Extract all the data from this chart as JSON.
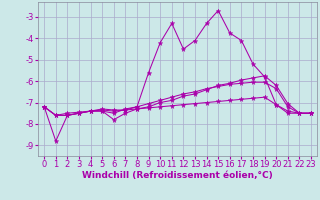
{
  "background_color": "#cce8e8",
  "grid_color": "#aaaacc",
  "line_color": "#aa00aa",
  "xlabel": "Windchill (Refroidissement éolien,°C)",
  "xlabel_fontsize": 6.5,
  "tick_fontsize": 6,
  "xlim": [
    -0.5,
    23.5
  ],
  "ylim": [
    -9.5,
    -2.3
  ],
  "yticks": [
    -9,
    -8,
    -7,
    -6,
    -5,
    -4,
    -3
  ],
  "xticks": [
    0,
    1,
    2,
    3,
    4,
    5,
    6,
    7,
    8,
    9,
    10,
    11,
    12,
    13,
    14,
    15,
    16,
    17,
    18,
    19,
    20,
    21,
    22,
    23
  ],
  "curves": [
    {
      "x": [
        0,
        1,
        2,
        3,
        4,
        5,
        6,
        7,
        8,
        9,
        10,
        11,
        12,
        13,
        14,
        15,
        16,
        17,
        18,
        19,
        20,
        21,
        22,
        23
      ],
      "y": [
        -7.2,
        -8.8,
        -7.6,
        -7.5,
        -7.4,
        -7.3,
        -7.35,
        -7.35,
        -7.2,
        -5.6,
        -4.2,
        -3.3,
        -4.5,
        -4.1,
        -3.3,
        -2.7,
        -3.75,
        -4.1,
        -5.2,
        -5.8,
        -7.1,
        -7.5,
        -7.5,
        -7.5
      ]
    },
    {
      "x": [
        0,
        1,
        2,
        3,
        4,
        5,
        6,
        7,
        8,
        9,
        10,
        11,
        12,
        13,
        14,
        15,
        16,
        17,
        18,
        19,
        20,
        21,
        22,
        23
      ],
      "y": [
        -7.2,
        -7.6,
        -7.6,
        -7.5,
        -7.4,
        -7.4,
        -7.8,
        -7.5,
        -7.3,
        -7.2,
        -7.0,
        -6.9,
        -6.7,
        -6.6,
        -6.4,
        -6.2,
        -6.1,
        -5.95,
        -5.85,
        -5.75,
        -6.2,
        -7.05,
        -7.5,
        -7.5
      ]
    },
    {
      "x": [
        0,
        1,
        2,
        3,
        4,
        5,
        6,
        7,
        8,
        9,
        10,
        11,
        12,
        13,
        14,
        15,
        16,
        17,
        18,
        19,
        20,
        21,
        22,
        23
      ],
      "y": [
        -7.2,
        -7.6,
        -7.6,
        -7.5,
        -7.4,
        -7.4,
        -7.5,
        -7.3,
        -7.2,
        -7.05,
        -6.9,
        -6.75,
        -6.6,
        -6.5,
        -6.35,
        -6.25,
        -6.15,
        -6.1,
        -6.05,
        -6.05,
        -6.35,
        -7.2,
        -7.5,
        -7.5
      ]
    },
    {
      "x": [
        0,
        1,
        2,
        3,
        4,
        5,
        6,
        7,
        8,
        9,
        10,
        11,
        12,
        13,
        14,
        15,
        16,
        17,
        18,
        19,
        20,
        21,
        22,
        23
      ],
      "y": [
        -7.2,
        -7.6,
        -7.5,
        -7.45,
        -7.4,
        -7.35,
        -7.4,
        -7.35,
        -7.3,
        -7.25,
        -7.2,
        -7.15,
        -7.1,
        -7.05,
        -7.0,
        -6.95,
        -6.9,
        -6.85,
        -6.8,
        -6.75,
        -7.1,
        -7.4,
        -7.5,
        -7.5
      ]
    }
  ]
}
